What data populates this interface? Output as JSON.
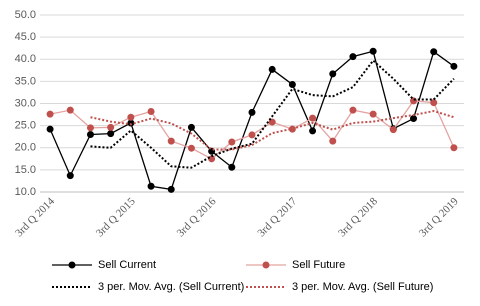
{
  "chart_data": {
    "type": "line",
    "categories": [
      "3rd Q 2014",
      null,
      null,
      null,
      "3rd Q 2015",
      null,
      null,
      null,
      "3rd Q 2016",
      null,
      null,
      null,
      "3rd Q 2017",
      null,
      null,
      null,
      "3rd Q 2018",
      null,
      null,
      null,
      "3rd Q 2019"
    ],
    "series": [
      {
        "name": "Sell Current",
        "color": "#000000",
        "marker": true,
        "dashed": false,
        "values": [
          24.2,
          13.7,
          23.0,
          23.2,
          25.6,
          11.3,
          10.6,
          24.6,
          19.2,
          15.6,
          28.0,
          37.7,
          34.3,
          23.8,
          36.7,
          40.6,
          41.8,
          24.3,
          26.6,
          41.7,
          38.4
        ]
      },
      {
        "name": "Sell Future",
        "color": "#e3a3a1",
        "marker_color": "#c0504d",
        "marker": true,
        "dashed": false,
        "values": [
          27.6,
          28.5,
          24.5,
          24.6,
          26.9,
          28.2,
          21.5,
          19.9,
          17.5,
          21.3,
          22.9,
          25.8,
          24.2,
          26.7,
          21.5,
          28.5,
          27.6,
          24.1,
          30.6,
          30.2,
          20.0
        ]
      },
      {
        "name": "3 per. Mov. Avg. (Sell Current)",
        "color": "#000000",
        "marker": false,
        "dashed": true,
        "values": [
          null,
          null,
          20.3,
          20.0,
          23.9,
          20.0,
          15.8,
          15.5,
          18.1,
          19.8,
          20.9,
          27.1,
          33.3,
          31.9,
          31.6,
          33.7,
          39.7,
          35.6,
          30.9,
          30.9,
          35.6
        ]
      },
      {
        "name": "3 per. Mov. Avg. (Sell Future)",
        "color": "#c0504d",
        "marker": false,
        "dashed": true,
        "values": [
          null,
          null,
          26.9,
          25.9,
          25.3,
          26.6,
          25.5,
          23.2,
          19.6,
          19.6,
          20.6,
          23.3,
          24.3,
          25.6,
          24.1,
          25.6,
          25.9,
          26.7,
          27.4,
          28.3,
          26.9
        ]
      }
    ],
    "ylim": [
      10,
      50
    ],
    "yticks": [
      {
        "value": 10,
        "label": "10.0"
      },
      {
        "value": 15,
        "label": "15.0"
      },
      {
        "value": 20,
        "label": "20.0"
      },
      {
        "value": 25,
        "label": "25.0"
      },
      {
        "value": 30,
        "label": "30.0"
      },
      {
        "value": 35,
        "label": "35.0"
      },
      {
        "value": 40,
        "label": "40.0"
      },
      {
        "value": 45,
        "label": "45.0"
      },
      {
        "value": 50,
        "label": "50.0"
      }
    ],
    "grid": true,
    "legend": "bottom"
  }
}
